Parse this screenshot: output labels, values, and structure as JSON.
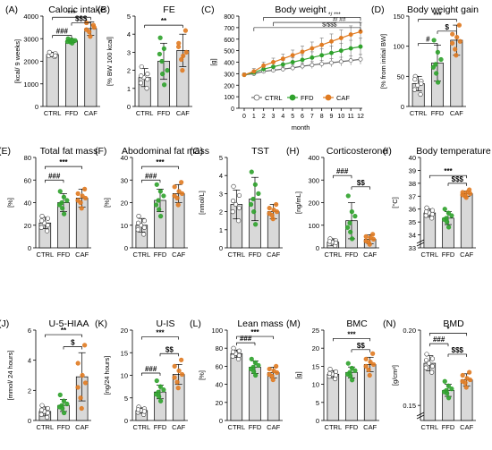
{
  "colors": {
    "ctrl": "#ffffff",
    "ffd": "#2fa22c",
    "caf": "#e07b22",
    "bar": "#d9d9d9",
    "axis": "#000000",
    "error": "#555555"
  },
  "chart_data": [
    {
      "id": "A",
      "type": "bar",
      "letter": "(A)",
      "title": "Caloric intake",
      "ylabel": "[kcal/ 9 weeks]",
      "categories": [
        "CTRL",
        "FFD",
        "CAF"
      ],
      "values": [
        2300,
        2900,
        3450
      ],
      "errors": [
        100,
        80,
        300
      ],
      "points": [
        [
          2200,
          2250,
          2300,
          2350,
          2400,
          2250
        ],
        [
          2800,
          2850,
          2900,
          2950,
          3000,
          2870,
          2920
        ],
        [
          3100,
          3300,
          3500,
          3700,
          3600,
          3400
        ]
      ],
      "ylim": [
        0,
        4000
      ],
      "yticks": [
        0,
        1000,
        2000,
        3000,
        4000
      ],
      "annotations": [
        {
          "text": "***",
          "from": 0,
          "to": 2,
          "y": 3950
        },
        {
          "text": "$$$",
          "from": 1,
          "to": 2,
          "y": 3700
        },
        {
          "text": "###",
          "from": 0,
          "to": 1,
          "y": 3150
        }
      ]
    },
    {
      "id": "B",
      "type": "bar",
      "letter": "(B)",
      "title": "FE",
      "ylabel": "[% BW 100 kcal]",
      "categories": [
        "CTRL",
        "FFD",
        "CAF"
      ],
      "values": [
        1.6,
        2.5,
        3.1
      ],
      "errors": [
        0.5,
        1.0,
        0.9
      ],
      "points": [
        [
          1.0,
          1.3,
          1.6,
          1.8,
          2.2,
          1.5,
          1.7
        ],
        [
          1.2,
          1.8,
          2.5,
          3.2,
          3.8,
          2.9,
          2.0
        ],
        [
          2.0,
          2.6,
          3.0,
          3.5,
          4.2,
          3.3,
          2.8
        ]
      ],
      "ylim": [
        0,
        5
      ],
      "yticks": [
        0,
        1,
        2,
        3,
        4,
        5
      ],
      "annotations": [
        {
          "text": "**",
          "from": 0,
          "to": 2,
          "y": 4.5
        }
      ]
    },
    {
      "id": "C",
      "type": "line",
      "letter": "(C)",
      "title": "Body weight",
      "ylabel": "[g]",
      "xlabel": "month",
      "x": [
        0,
        1,
        2,
        3,
        4,
        5,
        6,
        7,
        8,
        9,
        10,
        11,
        12
      ],
      "ylim": [
        0,
        800
      ],
      "yticks": [
        0,
        100,
        200,
        300,
        400,
        500,
        600,
        700,
        800
      ],
      "series": [
        {
          "name": "CTRL",
          "color_key": "ctrl",
          "values": [
            290,
            300,
            320,
            330,
            340,
            350,
            365,
            375,
            385,
            395,
            405,
            415,
            425
          ],
          "errors": [
            15,
            15,
            18,
            20,
            22,
            25,
            28,
            30,
            32,
            35,
            38,
            40,
            42
          ]
        },
        {
          "name": "FFD",
          "color_key": "ffd",
          "values": [
            290,
            310,
            340,
            360,
            380,
            400,
            420,
            440,
            460,
            480,
            500,
            520,
            535
          ],
          "errors": [
            15,
            20,
            25,
            30,
            35,
            40,
            45,
            50,
            55,
            60,
            65,
            70,
            75
          ]
        },
        {
          "name": "CAF",
          "color_key": "caf",
          "values": [
            290,
            320,
            370,
            400,
            430,
            460,
            490,
            520,
            550,
            580,
            610,
            640,
            665
          ],
          "errors": [
            15,
            25,
            30,
            35,
            40,
            45,
            50,
            55,
            60,
            65,
            70,
            75,
            80
          ]
        }
      ],
      "annotations": [
        {
          "text": "*/ ***",
          "from": 2,
          "to": 12,
          "y": 790
        },
        {
          "text": "#/ ##",
          "from": 3,
          "to": 12,
          "y": 745
        },
        {
          "text": "$/$$$",
          "from": 1,
          "to": 12,
          "y": 700
        }
      ]
    },
    {
      "id": "D",
      "type": "bar",
      "letter": "(D)",
      "title": "Body weight gain",
      "ylabel": "[% from initial BW]",
      "categories": [
        "CTRL",
        "FFD",
        "CAF"
      ],
      "values": [
        38,
        72,
        110
      ],
      "errors": [
        12,
        30,
        25
      ],
      "points": [
        [
          20,
          28,
          35,
          42,
          50,
          38,
          45
        ],
        [
          40,
          55,
          70,
          90,
          110,
          65,
          78
        ],
        [
          85,
          95,
          108,
          120,
          135,
          105,
          115
        ]
      ],
      "ylim": [
        0,
        150
      ],
      "yticks": [
        0,
        50,
        100,
        150
      ],
      "annotations": [
        {
          "text": "***",
          "from": 0,
          "to": 2,
          "y": 145
        },
        {
          "text": "$",
          "from": 1,
          "to": 2,
          "y": 125
        },
        {
          "text": "#",
          "from": 0,
          "to": 1,
          "y": 105
        }
      ]
    },
    {
      "id": "E",
      "type": "bar",
      "letter": "(E)",
      "title": "Total fat mass",
      "ylabel": "[%]",
      "categories": [
        "CTRL",
        "FFD",
        "CAF"
      ],
      "values": [
        22,
        40,
        44
      ],
      "errors": [
        5,
        8,
        8
      ],
      "points": [
        [
          15,
          18,
          22,
          26,
          28,
          20,
          24
        ],
        [
          30,
          35,
          40,
          45,
          50,
          38,
          42
        ],
        [
          35,
          40,
          44,
          48,
          52,
          42,
          46
        ]
      ],
      "ylim": [
        0,
        80
      ],
      "yticks": [
        0,
        20,
        40,
        60,
        80
      ],
      "annotations": [
        {
          "text": "***",
          "from": 0,
          "to": 2,
          "y": 72
        },
        {
          "text": "###",
          "from": 0,
          "to": 1,
          "y": 60
        }
      ]
    },
    {
      "id": "F",
      "type": "bar",
      "letter": "(F)",
      "title": "Abodominal fat mass",
      "ylabel": "[%]",
      "categories": [
        "CTRL",
        "FFD",
        "CAF"
      ],
      "values": [
        10,
        21,
        24
      ],
      "errors": [
        3,
        5,
        4
      ],
      "points": [
        [
          6,
          8,
          10,
          12,
          14,
          9,
          11
        ],
        [
          14,
          17,
          21,
          25,
          28,
          19,
          23
        ],
        [
          19,
          22,
          24,
          27,
          29,
          23,
          25
        ]
      ],
      "ylim": [
        0,
        40
      ],
      "yticks": [
        0,
        10,
        20,
        30,
        40
      ],
      "annotations": [
        {
          "text": "***",
          "from": 0,
          "to": 2,
          "y": 36
        },
        {
          "text": "###",
          "from": 0,
          "to": 1,
          "y": 30
        }
      ]
    },
    {
      "id": "G",
      "type": "bar",
      "letter": "(G)",
      "title": "TST",
      "ylabel": "[nmol/L]",
      "categories": [
        "CTRL",
        "FFD",
        "CAF"
      ],
      "values": [
        2.4,
        2.7,
        2.0
      ],
      "errors": [
        0.8,
        1.2,
        0.4
      ],
      "points": [
        [
          1.5,
          2.0,
          2.4,
          2.9,
          3.4,
          2.2,
          2.6
        ],
        [
          1.3,
          2.0,
          2.7,
          3.5,
          4.2,
          2.4,
          3.0
        ],
        [
          1.6,
          1.8,
          2.0,
          2.2,
          2.4,
          1.9,
          2.1
        ]
      ],
      "ylim": [
        0,
        5
      ],
      "yticks": [
        0,
        1,
        2,
        3,
        4,
        5
      ],
      "annotations": []
    },
    {
      "id": "H",
      "type": "bar",
      "letter": "(H)",
      "title": "Corticosterone",
      "ylabel": "[ng/mL]",
      "categories": [
        "CTRL",
        "FFD",
        "CAF"
      ],
      "values": [
        25,
        120,
        38
      ],
      "errors": [
        15,
        80,
        20
      ],
      "points": [
        [
          10,
          18,
          25,
          32,
          40,
          22,
          28
        ],
        [
          40,
          70,
          110,
          160,
          230,
          90,
          140
        ],
        [
          15,
          25,
          38,
          50,
          60,
          30,
          45
        ]
      ],
      "ylim": [
        0,
        400
      ],
      "yticks": [
        0,
        100,
        200,
        300,
        400
      ],
      "annotations": [
        {
          "text": "###",
          "from": 0,
          "to": 1,
          "y": 320
        },
        {
          "text": "$$",
          "from": 1,
          "to": 2,
          "y": 270
        }
      ]
    },
    {
      "id": "I",
      "type": "bar",
      "letter": "(I)",
      "title": "Body temperature",
      "ylabel": "[°C]",
      "categories": [
        "CTRL",
        "FFD",
        "CAF"
      ],
      "values": [
        35.7,
        35.3,
        37.2
      ],
      "errors": [
        0.3,
        0.5,
        0.2
      ],
      "points": [
        [
          35.3,
          35.5,
          35.7,
          35.9,
          36.1,
          35.6,
          35.8
        ],
        [
          34.6,
          35.0,
          35.3,
          35.7,
          36.0,
          35.2,
          35.5
        ],
        [
          36.9,
          37.0,
          37.2,
          37.3,
          37.5,
          37.1,
          37.3
        ]
      ],
      "ylim": [
        33,
        40
      ],
      "yticks": [
        33,
        34,
        35,
        36,
        37,
        38,
        39,
        40
      ],
      "axis_break": true,
      "annotations": [
        {
          "text": "***",
          "from": 0,
          "to": 2,
          "y": 38.6
        },
        {
          "text": "$$$",
          "from": 1,
          "to": 2,
          "y": 38.0
        }
      ]
    },
    {
      "id": "J",
      "type": "bar",
      "letter": "(J)",
      "title": "U-5-HIAA",
      "ylabel": "[mmol/ 24 hours]",
      "categories": [
        "CTRL",
        "FFD",
        "CAF"
      ],
      "values": [
        0.6,
        1.0,
        2.9
      ],
      "errors": [
        0.3,
        0.4,
        1.6
      ],
      "points": [
        [
          0.2,
          0.4,
          0.6,
          0.8,
          1.0,
          0.5,
          0.7
        ],
        [
          0.5,
          0.8,
          1.0,
          1.3,
          1.7,
          0.9,
          1.1
        ],
        [
          0.8,
          1.5,
          2.5,
          3.8,
          5.0,
          2.2,
          3.0
        ]
      ],
      "ylim": [
        0,
        6
      ],
      "yticks": [
        0,
        2,
        4,
        6
      ],
      "annotations": [
        {
          "text": "**",
          "from": 0,
          "to": 2,
          "y": 5.7
        },
        {
          "text": "$",
          "from": 1,
          "to": 2,
          "y": 4.9
        }
      ]
    },
    {
      "id": "K",
      "type": "bar",
      "letter": "(K)",
      "title": "U-IS",
      "ylabel": "[ng/24 hours]",
      "categories": [
        "CTRL",
        "FFD",
        "CAF"
      ],
      "values": [
        2.2,
        6.3,
        10.2
      ],
      "errors": [
        0.6,
        1.5,
        2.2
      ],
      "points": [
        [
          1.3,
          1.8,
          2.2,
          2.6,
          3.0,
          2.0,
          2.4
        ],
        [
          4.3,
          5.3,
          6.3,
          7.5,
          8.8,
          5.8,
          6.8
        ],
        [
          7.2,
          8.5,
          10.2,
          12.0,
          13.4,
          9.5,
          11.0
        ]
      ],
      "ylim": [
        0,
        20
      ],
      "yticks": [
        0,
        5,
        10,
        15,
        20
      ],
      "annotations": [
        {
          "text": "***",
          "from": 0,
          "to": 2,
          "y": 18.5
        },
        {
          "text": "$$",
          "from": 1,
          "to": 2,
          "y": 14.8
        },
        {
          "text": "###",
          "from": 0,
          "to": 1,
          "y": 10.5
        }
      ]
    },
    {
      "id": "L",
      "type": "bar",
      "letter": "(L)",
      "title": "Lean mass",
      "ylabel": "[%]",
      "categories": [
        "CTRL",
        "FFD",
        "CAF"
      ],
      "values": [
        74,
        59,
        53
      ],
      "errors": [
        4,
        7,
        6
      ],
      "points": [
        [
          68,
          71,
          74,
          77,
          80,
          72,
          76
        ],
        [
          50,
          54,
          59,
          64,
          68,
          57,
          61
        ],
        [
          45,
          49,
          53,
          57,
          60,
          51,
          55
        ]
      ],
      "ylim": [
        0,
        100
      ],
      "yticks": [
        0,
        20,
        40,
        60,
        80,
        100
      ],
      "annotations": [
        {
          "text": "***",
          "from": 0,
          "to": 2,
          "y": 93
        },
        {
          "text": "###",
          "from": 0,
          "to": 1,
          "y": 86
        }
      ]
    },
    {
      "id": "M",
      "type": "bar",
      "letter": "(M)",
      "title": "BMC",
      "ylabel": "[g]",
      "categories": [
        "CTRL",
        "FFD",
        "CAF"
      ],
      "values": [
        12.8,
        13.3,
        15.5
      ],
      "errors": [
        1.0,
        1.5,
        2.0
      ],
      "points": [
        [
          11.5,
          12.2,
          12.8,
          13.5,
          14.2,
          12.5,
          13.0
        ],
        [
          11.2,
          12.3,
          13.3,
          14.5,
          15.8,
          12.8,
          13.8
        ],
        [
          12.5,
          14.0,
          15.5,
          17.0,
          18.5,
          15.0,
          16.2
        ]
      ],
      "ylim": [
        0,
        25
      ],
      "yticks": [
        0,
        5,
        10,
        15,
        20,
        25
      ],
      "annotations": [
        {
          "text": "***",
          "from": 0,
          "to": 2,
          "y": 22.7
        },
        {
          "text": "$$",
          "from": 1,
          "to": 2,
          "y": 19.6
        }
      ]
    },
    {
      "id": "N",
      "type": "bar",
      "letter": "(N)",
      "title": "BMD",
      "ylabel": "[g/cm²]",
      "categories": [
        "CTRL",
        "FFD",
        "CAF"
      ],
      "values": [
        0.178,
        0.16,
        0.167
      ],
      "errors": [
        0.005,
        0.004,
        0.004
      ],
      "points": [
        [
          0.172,
          0.175,
          0.178,
          0.181,
          0.184,
          0.176,
          0.18
        ],
        [
          0.155,
          0.158,
          0.16,
          0.163,
          0.166,
          0.159,
          0.161
        ],
        [
          0.162,
          0.165,
          0.167,
          0.17,
          0.172,
          0.166,
          0.168
        ]
      ],
      "ylim": [
        0.14,
        0.2
      ],
      "yticks": [
        0.15,
        0.2
      ],
      "axis_break": true,
      "annotations": [
        {
          "text": "*",
          "from": 0,
          "to": 2,
          "y": 0.198
        },
        {
          "text": "###",
          "from": 0,
          "to": 1,
          "y": 0.191
        },
        {
          "text": "$$$",
          "from": 1,
          "to": 2,
          "y": 0.184
        }
      ]
    }
  ]
}
